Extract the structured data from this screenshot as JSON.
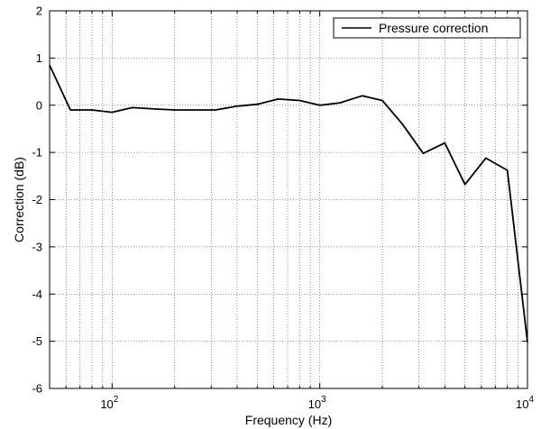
{
  "chart_data": {
    "type": "line",
    "xscale": "log",
    "xlim": [
      50,
      10000
    ],
    "ylim": [
      -6,
      2
    ],
    "grid": true,
    "xlabel": "Frequency (Hz)",
    "ylabel": "Correction (dB)",
    "x_ticks": [
      {
        "value": 100,
        "base": "10",
        "exp": "2"
      },
      {
        "value": 1000,
        "base": "10",
        "exp": "3"
      },
      {
        "value": 10000,
        "base": "10",
        "exp": "4"
      }
    ],
    "y_ticks": [
      "-6",
      "-5",
      "-4",
      "-3",
      "-2",
      "-1",
      "0",
      "1",
      "2"
    ],
    "legend": {
      "position": "top-right",
      "entries": [
        "Pressure correction"
      ]
    },
    "series": [
      {
        "name": "Pressure correction",
        "color": "#000000",
        "x": [
          50,
          63,
          80,
          100,
          125,
          160,
          200,
          250,
          315,
          400,
          500,
          630,
          800,
          1000,
          1250,
          1600,
          2000,
          2500,
          3150,
          4000,
          5000,
          6300,
          8000,
          10000
        ],
        "y": [
          0.85,
          -0.1,
          -0.1,
          -0.15,
          -0.05,
          -0.08,
          -0.1,
          -0.1,
          -0.1,
          -0.02,
          0.02,
          0.13,
          0.1,
          0.0,
          0.05,
          0.2,
          0.1,
          -0.4,
          -1.02,
          -0.8,
          -1.68,
          -1.12,
          -1.38,
          -5.02
        ]
      }
    ]
  }
}
